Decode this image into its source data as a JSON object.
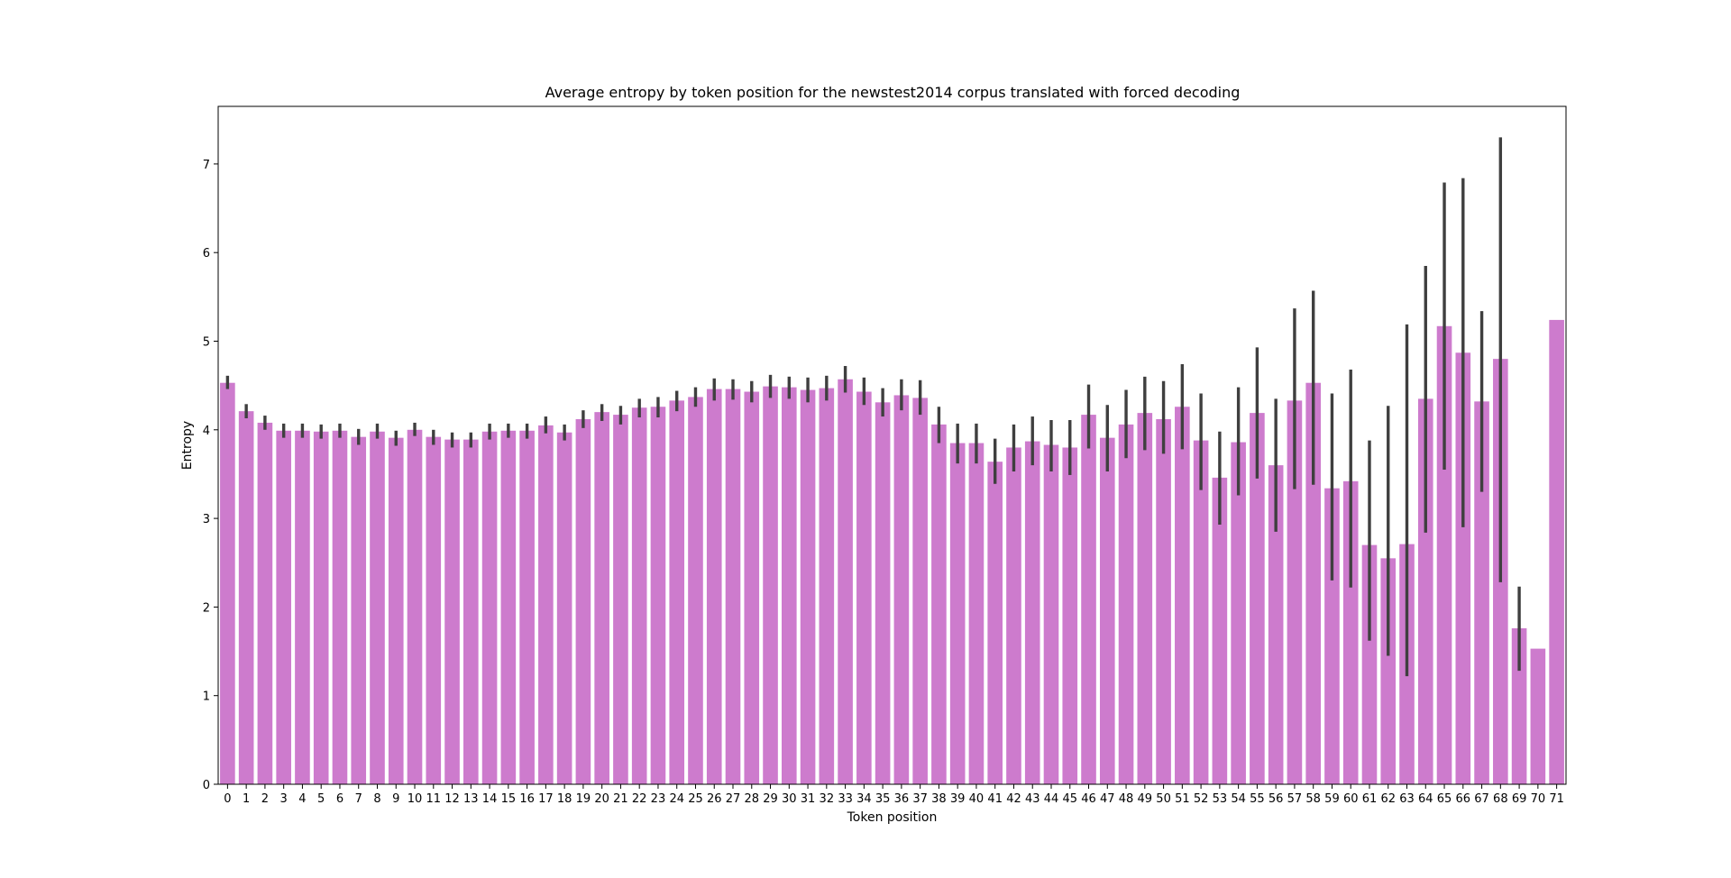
{
  "chart_data": {
    "type": "bar",
    "title": "Average entropy by token position for the newstest2014 corpus translated with forced decoding",
    "xlabel": "Token position",
    "ylabel": "Entropy",
    "ylim": [
      0,
      7.65
    ],
    "yticks": [
      0,
      1,
      2,
      3,
      4,
      5,
      6,
      7
    ],
    "grid": false,
    "bar_color": "#cd7bcd",
    "errorbar_color": "#3f3f3f",
    "categories": [
      "0",
      "1",
      "2",
      "3",
      "4",
      "5",
      "6",
      "7",
      "8",
      "9",
      "10",
      "11",
      "12",
      "13",
      "14",
      "15",
      "16",
      "17",
      "18",
      "19",
      "20",
      "21",
      "22",
      "23",
      "24",
      "25",
      "26",
      "27",
      "28",
      "29",
      "30",
      "31",
      "32",
      "33",
      "34",
      "35",
      "36",
      "37",
      "38",
      "39",
      "40",
      "41",
      "42",
      "43",
      "44",
      "45",
      "46",
      "47",
      "48",
      "49",
      "50",
      "51",
      "52",
      "53",
      "54",
      "55",
      "56",
      "57",
      "58",
      "59",
      "60",
      "61",
      "62",
      "63",
      "64",
      "65",
      "66",
      "67",
      "68",
      "69",
      "70",
      "71"
    ],
    "values": [
      4.53,
      4.21,
      4.08,
      3.99,
      3.99,
      3.98,
      3.99,
      3.92,
      3.98,
      3.91,
      4.0,
      3.92,
      3.89,
      3.89,
      3.98,
      3.99,
      3.99,
      4.05,
      3.97,
      4.12,
      4.2,
      4.17,
      4.25,
      4.26,
      4.33,
      4.37,
      4.46,
      4.46,
      4.43,
      4.49,
      4.48,
      4.45,
      4.47,
      4.57,
      4.43,
      4.31,
      4.39,
      4.36,
      4.06,
      3.85,
      3.85,
      3.64,
      3.8,
      3.87,
      3.83,
      3.8,
      4.17,
      3.91,
      4.06,
      4.19,
      4.12,
      4.26,
      3.88,
      3.46,
      3.86,
      4.19,
      3.6,
      4.33,
      4.53,
      3.34,
      3.42,
      2.7,
      2.55,
      2.71,
      4.35,
      5.17,
      4.87,
      4.32,
      4.8,
      1.76,
      1.53,
      5.24
    ],
    "error_low": [
      4.46,
      4.13,
      4.0,
      3.91,
      3.91,
      3.9,
      3.91,
      3.83,
      3.9,
      3.82,
      3.93,
      3.83,
      3.8,
      3.8,
      3.89,
      3.91,
      3.9,
      3.96,
      3.88,
      4.02,
      4.1,
      4.06,
      4.14,
      4.14,
      4.21,
      4.26,
      4.33,
      4.34,
      4.31,
      4.36,
      4.35,
      4.31,
      4.33,
      4.42,
      4.28,
      4.15,
      4.22,
      4.17,
      3.85,
      3.62,
      3.62,
      3.39,
      3.53,
      3.6,
      3.53,
      3.49,
      3.79,
      3.53,
      3.68,
      3.77,
      3.73,
      3.78,
      3.32,
      2.93,
      3.26,
      3.45,
      2.85,
      3.33,
      3.38,
      2.3,
      2.22,
      1.62,
      1.45,
      1.22,
      2.84,
      3.55,
      2.9,
      3.3,
      2.28,
      1.28,
      null,
      null
    ],
    "error_high": [
      4.61,
      4.29,
      4.16,
      4.07,
      4.07,
      4.06,
      4.07,
      4.01,
      4.07,
      3.99,
      4.08,
      4.0,
      3.97,
      3.97,
      4.07,
      4.07,
      4.07,
      4.15,
      4.06,
      4.22,
      4.29,
      4.27,
      4.35,
      4.37,
      4.44,
      4.48,
      4.58,
      4.57,
      4.55,
      4.62,
      4.6,
      4.59,
      4.61,
      4.72,
      4.59,
      4.47,
      4.57,
      4.56,
      4.26,
      4.07,
      4.07,
      3.9,
      4.06,
      4.15,
      4.11,
      4.11,
      4.51,
      4.28,
      4.45,
      4.6,
      4.55,
      4.74,
      4.41,
      3.98,
      4.48,
      4.93,
      4.35,
      5.37,
      5.57,
      4.41,
      4.68,
      3.88,
      4.27,
      5.19,
      5.85,
      6.79,
      6.84,
      5.34,
      7.3,
      2.23,
      null,
      null
    ]
  }
}
